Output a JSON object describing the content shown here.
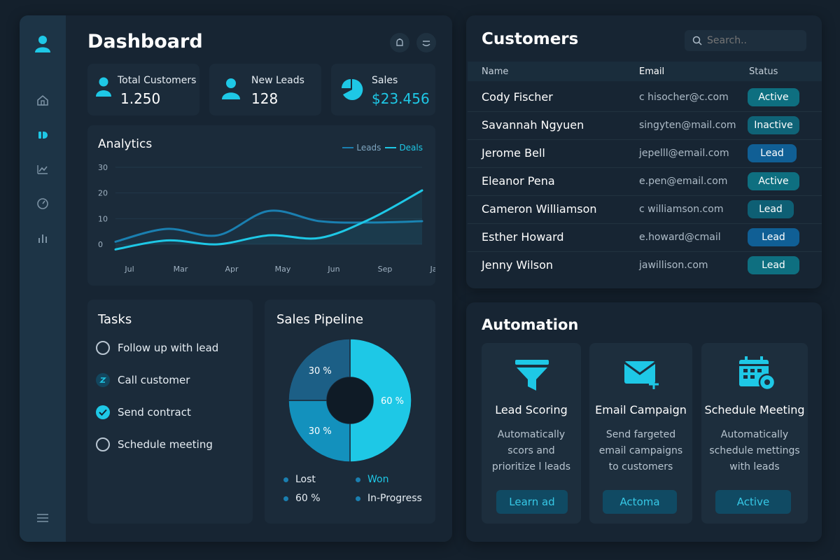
{
  "colors": {
    "accent": "#1ec8e6",
    "accent_dark": "#1a7fb0",
    "active_badge": "#0e6f80",
    "inactive_badge": "#0f6377",
    "lead_badge": "#105f95"
  },
  "sidebar": {
    "icons": [
      "user-icon",
      "home-icon",
      "dashboard-icon",
      "analytics-icon",
      "gauge-icon",
      "bar-chart-icon",
      "menu-icon"
    ]
  },
  "dashboard": {
    "title": "Dashboard",
    "header_icons": [
      "bell-icon",
      "refresh-icon"
    ],
    "stats": [
      {
        "label": "Total Customers",
        "value": "1.250",
        "icon": "user-icon"
      },
      {
        "label": "New Leads",
        "value": "128",
        "icon": "user-icon"
      },
      {
        "label": "Sales",
        "value": "$23.456",
        "icon": "pie-icon"
      }
    ]
  },
  "analytics": {
    "title": "Analytics",
    "legend": [
      "Leads",
      "Deals"
    ]
  },
  "chart_data": [
    {
      "type": "line",
      "title": "Analytics",
      "categories": [
        "Jul",
        "Mar",
        "Apr",
        "May",
        "Jun",
        "Sep",
        "Jan"
      ],
      "y_ticks": [
        "30",
        "20",
        "10",
        "0"
      ],
      "ylim": [
        0,
        30
      ],
      "legend_position": "top-right",
      "series": [
        {
          "name": "Leads",
          "values": [
            1,
            6,
            3.5,
            13,
            9,
            8.5,
            9
          ]
        },
        {
          "name": "Deals",
          "values": [
            -2,
            1.5,
            0,
            3.5,
            2.5,
            10,
            21
          ]
        }
      ]
    },
    {
      "type": "pie",
      "title": "Sales Pipeline",
      "series": [
        {
          "name": "Won",
          "value": 60,
          "label": "60 %"
        },
        {
          "name": "In-Progress",
          "value": 30,
          "label": "30 %"
        },
        {
          "name": "Lost",
          "value": 30,
          "label": "30 %"
        }
      ]
    }
  ],
  "tasks": {
    "title": "Tasks",
    "items": [
      {
        "label": "Follow up with lead",
        "state": "open"
      },
      {
        "label": "Call customer",
        "state": "in-progress"
      },
      {
        "label": "Send contract",
        "state": "done"
      },
      {
        "label": "Schedule meeting",
        "state": "open"
      }
    ]
  },
  "pipeline": {
    "title": "Sales Pipeline",
    "slice_labels": [
      "60 %",
      "30 %",
      "30 %"
    ],
    "legend": [
      "Lost",
      "Won",
      "60 %",
      "In-Progress"
    ]
  },
  "customers": {
    "title": "Customers",
    "search_placeholder": "Search..",
    "columns": [
      "Name",
      "Email",
      "Status"
    ],
    "rows": [
      {
        "name": "Cody Fischer",
        "email": "c hisocher@c.com",
        "status": "Active"
      },
      {
        "name": "Savannah Ngyuen",
        "email": "singyten@mail.com",
        "status": "Inactive"
      },
      {
        "name": "Jerome Bell",
        "email": "jepelll@email.com",
        "status": "Lead"
      },
      {
        "name": "Eleanor Pena",
        "email": "e.pen@email.com",
        "status": "Active"
      },
      {
        "name": "Cameron Williamson",
        "email": "c williamson.com",
        "status": "Lead"
      },
      {
        "name": "Esther Howard",
        "email": "e.howard@cmail",
        "status": "Lead"
      },
      {
        "name": "Jenny Wilson",
        "email": "jawillison.com",
        "status": "Lead"
      }
    ]
  },
  "automation": {
    "title": "Automation",
    "cards": [
      {
        "title": "Lead Scoring",
        "desc": [
          "Automatically",
          "scors and",
          "prioritize l leads"
        ],
        "button": "Learn ad",
        "icon": "funnel-icon"
      },
      {
        "title": "Email Campaign",
        "desc": [
          "Send fargeted",
          "email campaigns",
          "to customers"
        ],
        "button": "Actoma",
        "icon": "mail-plus-icon"
      },
      {
        "title": "Schedule Meeting",
        "desc": [
          "Automatically",
          "schedule mettings",
          "with leads"
        ],
        "button": "Active",
        "icon": "calendar-icon"
      }
    ]
  }
}
